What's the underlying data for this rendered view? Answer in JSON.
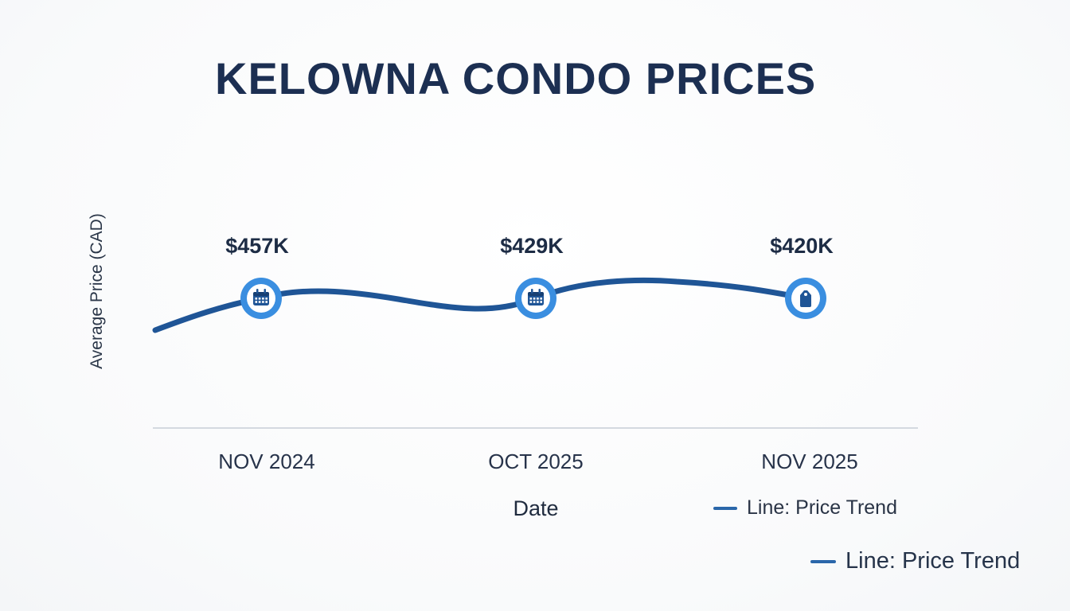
{
  "chart_data": {
    "type": "line",
    "title": "KELOWNA CONDO PRICES",
    "xlabel": "Date",
    "ylabel": "Average Price (CAD)",
    "categories": [
      "NOV 2024",
      "OCT 2025",
      "NOV 2025"
    ],
    "series": [
      {
        "name": "Line: Price Trend",
        "values": [
          457,
          429,
          420
        ],
        "data_labels": [
          "$457K",
          "$429K",
          "$420K"
        ],
        "marker_icons": [
          "calendar-icon",
          "calendar-icon",
          "price-tag-icon"
        ]
      }
    ],
    "legend_entries": [
      "Line: Price Trend",
      "Line: Price Trend"
    ],
    "grid": false,
    "colors": {
      "line": "#1f5596",
      "marker_ring": "#3a8ee0",
      "title": "#1c2f52"
    }
  }
}
